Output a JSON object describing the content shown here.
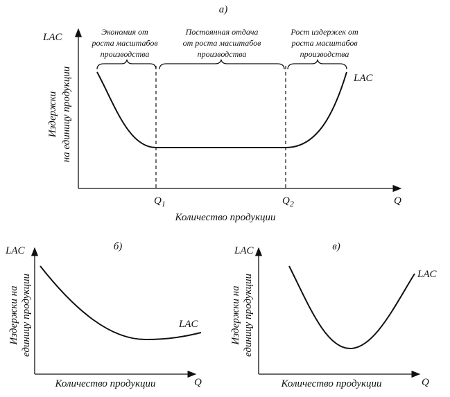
{
  "panels": [
    {
      "label": "а)",
      "y_axis_label": "LAC",
      "y_title": [
        "Издержки",
        "на единицу продукции"
      ],
      "regions": [
        [
          "Экономия от",
          "роста масштабов",
          "производства"
        ],
        [
          "Постоянная отдача",
          "от роста масштабов",
          "производства"
        ],
        [
          "Рост издержек от",
          "роста масштабов",
          "производства"
        ]
      ],
      "curve_label": "LAC",
      "x_ticks": [
        {
          "main": "Q",
          "sub": "1"
        },
        {
          "main": "Q",
          "sub": "2"
        }
      ],
      "x_axis_label": "Q",
      "x_title": "Количество продукции"
    },
    {
      "label": "б)",
      "y_axis_label": "LAC",
      "y_title": [
        "Издержки на",
        "единицу продукции"
      ],
      "curve_label": "LAC",
      "x_axis_label": "Q",
      "x_title": "Количество продукции"
    },
    {
      "label": "в)",
      "y_axis_label": "LAC",
      "y_title": [
        "Издержки на",
        "единицу продукции"
      ],
      "curve_label": "LAC",
      "x_axis_label": "Q",
      "x_title": "Количество продукции"
    }
  ]
}
